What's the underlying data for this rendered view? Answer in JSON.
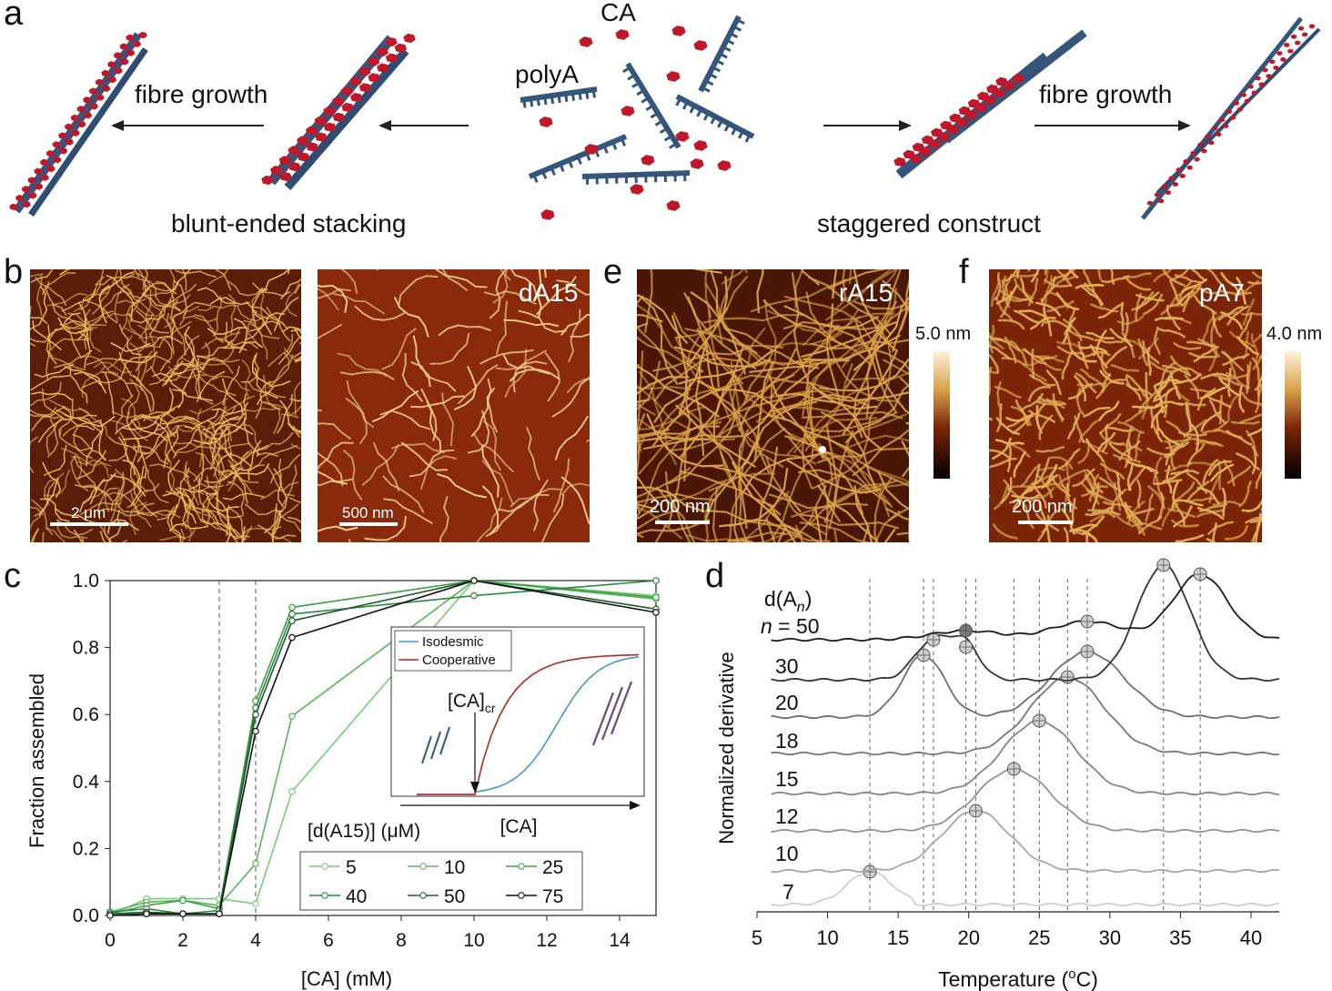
{
  "panels": {
    "a": {
      "label": "a",
      "ca_label": "CA",
      "polya_label": "polyA",
      "left_growth": "fibre growth",
      "right_growth": "fibre growth",
      "left_caption": "blunt-ended stacking",
      "right_caption": "staggered construct"
    },
    "b": {
      "label": "b",
      "img1_scale": "2 μm",
      "img2_tag": "dA15",
      "img2_scale": "500 nm"
    },
    "e": {
      "label": "e",
      "tag": "rA15",
      "scale": "200 nm",
      "colorbar_max": "5.0 nm"
    },
    "f": {
      "label": "f",
      "tag": "pA7",
      "scale": "200 nm",
      "colorbar_max": "4.0 nm"
    },
    "c": {
      "label": "c"
    },
    "d": {
      "label": "d"
    }
  },
  "colors": {
    "polya_blue": "#35557a",
    "ca_red": "#c0182a",
    "isodesmic": "#4f95c2",
    "cooperative": "#b4272c"
  },
  "chart_data": [
    {
      "id": "c",
      "type": "line",
      "xlabel": "[CA] (mM)",
      "ylabel": "Fraction assembled",
      "xlim": [
        0,
        15
      ],
      "ylim": [
        0,
        1.0
      ],
      "xticks": [
        "0",
        "2",
        "4",
        "6",
        "8",
        "10",
        "12",
        "14"
      ],
      "yticks": [
        "0.0",
        "0.2",
        "0.4",
        "0.6",
        "0.8",
        "1.0"
      ],
      "vlines": [
        3,
        4
      ],
      "legend_title": "[d(A15)] (μM)",
      "x": [
        0,
        1,
        2,
        3,
        4,
        5,
        10,
        15
      ],
      "series": [
        {
          "name": "5",
          "color": "#7ccb7c",
          "values": [
            0.0,
            0.05,
            0.05,
            0.05,
            0.035,
            0.37,
            1.0,
            0.955
          ]
        },
        {
          "name": "10",
          "color": "#58b55a",
          "values": [
            0.01,
            0.04,
            0.045,
            0.03,
            0.155,
            0.595,
            1.0,
            0.945
          ]
        },
        {
          "name": "25",
          "color": "#3f9f48",
          "values": [
            0.005,
            0.03,
            0.045,
            0.02,
            0.64,
            0.92,
            1.0,
            0.95
          ]
        },
        {
          "name": "40",
          "color": "#2b8a3e",
          "values": [
            0.01,
            0.02,
            0.005,
            0.015,
            0.62,
            0.9,
            0.955,
            1.0
          ]
        },
        {
          "name": "50",
          "color": "#1f5a30",
          "values": [
            0.005,
            0.01,
            0.005,
            0.005,
            0.6,
            0.88,
            1.0,
            0.915
          ]
        },
        {
          "name": "75",
          "color": "#111111",
          "values": [
            0.0,
            0.005,
            0.005,
            0.005,
            0.55,
            0.83,
            1.0,
            0.905
          ]
        }
      ],
      "inset": {
        "xlabel": "[CA]",
        "critical_label": "[CA]",
        "critical_sub": "cr",
        "series": [
          {
            "name": "Isodesmic",
            "color": "#4f95c2"
          },
          {
            "name": "Cooperative",
            "color": "#b4272c"
          }
        ]
      }
    },
    {
      "id": "d",
      "type": "line",
      "xlabel": "Temperature (oC)",
      "xlabel_main": "Temperature (",
      "xlabel_sup": "o",
      "xlabel_end": "C)",
      "ylabel": "Normalized derivative",
      "xlim": [
        5,
        42
      ],
      "xticks": [
        "5",
        "10",
        "15",
        "20",
        "25",
        "30",
        "35",
        "40"
      ],
      "series_title": "d(An)",
      "n_prefix": "n",
      "n_eq": " = 50",
      "vlines": [
        13,
        16.8,
        17.5,
        19.8,
        20.5,
        23.2,
        25.0,
        27.0,
        28.4,
        33.8,
        36.4
      ],
      "series": [
        {
          "name": "7",
          "color": "#cfcfcf",
          "peaks": [
            [
              13.0,
              0
            ]
          ]
        },
        {
          "name": "10",
          "color": "#a6a6a6",
          "peaks": [
            [
              20.5,
              0
            ]
          ]
        },
        {
          "name": "12",
          "color": "#939393",
          "peaks": [
            [
              23.2,
              0
            ]
          ]
        },
        {
          "name": "15",
          "color": "#858585",
          "peaks": [
            [
              25.0,
              0
            ]
          ]
        },
        {
          "name": "18",
          "color": "#777777",
          "peaks": [
            [
              27.0,
              0
            ]
          ]
        },
        {
          "name": "20",
          "color": "#6e6e6e",
          "peaks": [
            [
              16.8,
              0
            ],
            [
              28.4,
              0
            ]
          ]
        },
        {
          "name": "30",
          "color": "#333333",
          "peaks": [
            [
              17.5,
              0
            ],
            [
              19.8,
              0
            ],
            [
              33.8,
              0
            ]
          ]
        },
        {
          "name": "50",
          "color": "#1a1a1a",
          "peaks": [
            [
              19.8,
              0
            ],
            [
              28.4,
              0
            ],
            [
              36.4,
              0
            ]
          ]
        }
      ]
    }
  ]
}
